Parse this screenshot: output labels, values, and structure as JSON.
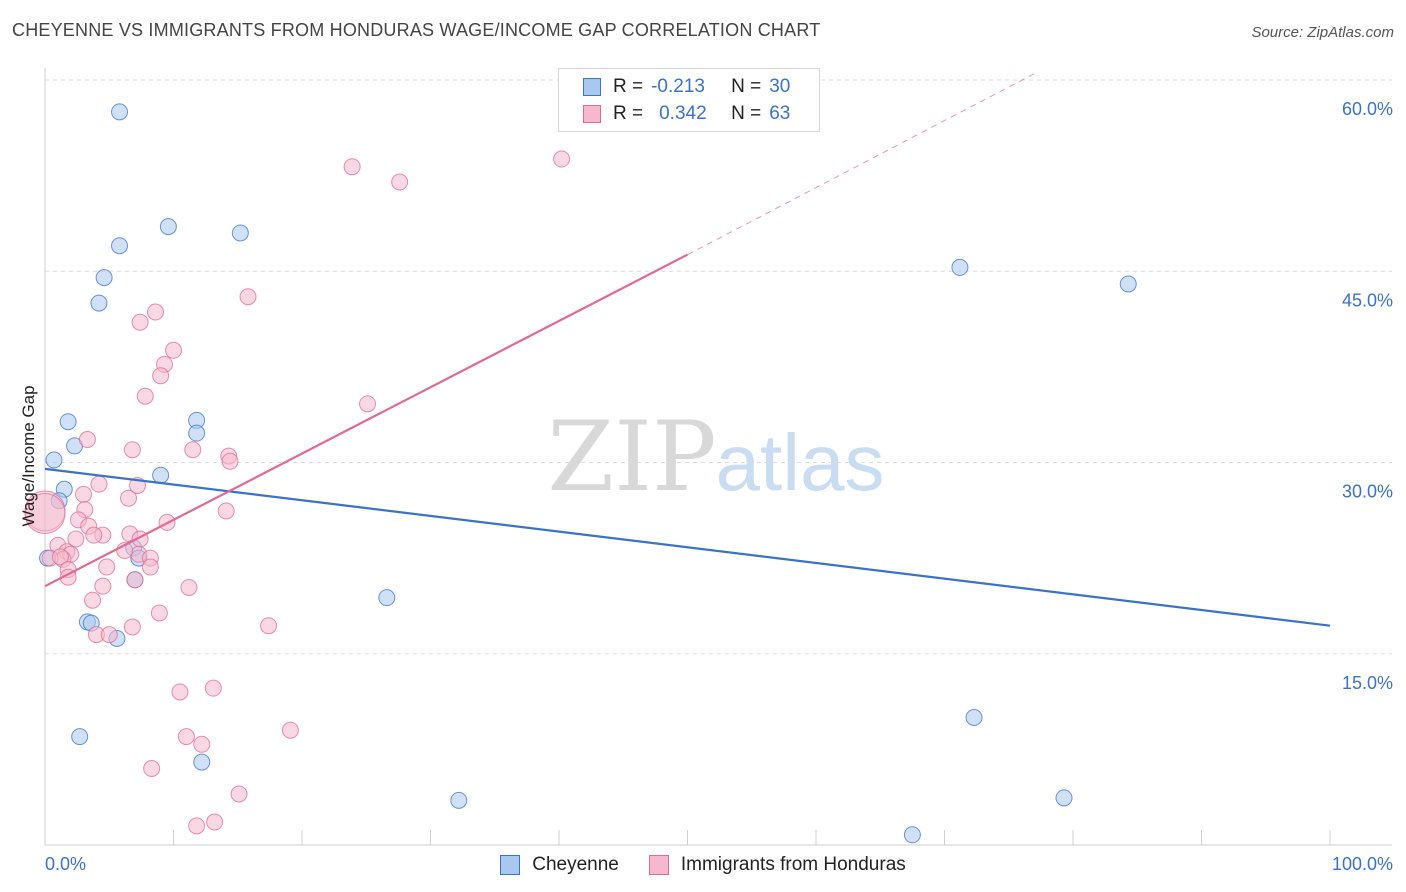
{
  "title": "CHEYENNE VS IMMIGRANTS FROM HONDURAS WAGE/INCOME GAP CORRELATION CHART",
  "source": "Source: ZipAtlas.com",
  "watermark": {
    "zip": "ZIP",
    "atlas": "atlas"
  },
  "legend": {
    "rows": [
      {
        "r_label": "R =",
        "r_value": "-0.213",
        "n_label": "N =",
        "n_value": "30"
      },
      {
        "r_label": "R =",
        "r_value": "0.342",
        "n_label": "N =",
        "n_value": "63"
      }
    ]
  },
  "chart_data": {
    "type": "scatter",
    "title": "CHEYENNE VS IMMIGRANTS FROM HONDURAS WAGE/INCOME GAP CORRELATION CHART",
    "xlabel": "",
    "ylabel": "Wage/Income Gap",
    "xlim": [
      0,
      100
    ],
    "ylim": [
      0,
      60
    ],
    "x_tick_labels": [
      "0.0%",
      "100.0%"
    ],
    "y_ticks": [
      15,
      30,
      45,
      60
    ],
    "y_tick_labels": [
      "15.0%",
      "30.0%",
      "45.0%",
      "60.0%"
    ],
    "legend_position": "bottom",
    "series": [
      {
        "name": "Cheyenne",
        "color": "#3b73c8",
        "fill": "#a9c8f0",
        "r": -0.213,
        "n": 30,
        "points": [
          [
            5.8,
            57.5
          ],
          [
            9.6,
            48.5
          ],
          [
            5.8,
            47.0
          ],
          [
            15.2,
            48.0
          ],
          [
            4.6,
            44.5
          ],
          [
            4.2,
            42.5
          ],
          [
            1.8,
            33.2
          ],
          [
            11.8,
            33.3
          ],
          [
            11.8,
            32.3
          ],
          [
            2.3,
            31.3
          ],
          [
            0.7,
            30.2
          ],
          [
            9.0,
            29.0
          ],
          [
            1.5,
            27.9
          ],
          [
            1.1,
            27.0
          ],
          [
            6.9,
            23.3
          ],
          [
            7.3,
            22.5
          ],
          [
            0.2,
            22.5
          ],
          [
            7.0,
            20.8
          ],
          [
            3.3,
            17.5
          ],
          [
            3.6,
            17.4
          ],
          [
            5.6,
            16.2
          ],
          [
            26.6,
            19.4
          ],
          [
            2.7,
            8.5
          ],
          [
            12.2,
            6.5
          ],
          [
            32.2,
            3.5
          ],
          [
            71.2,
            45.3
          ],
          [
            84.3,
            44.0
          ],
          [
            72.3,
            10.0
          ],
          [
            79.3,
            3.7
          ],
          [
            67.5,
            0.8
          ]
        ],
        "trend": {
          "x0": 0.0,
          "y0": 29.5,
          "x1": 100.0,
          "y1": 17.2,
          "dashed_to": null
        }
      },
      {
        "name": "Immigrants from Honduras",
        "color": "#e26a93",
        "fill": "#f5b8cc",
        "r": 0.342,
        "n": 63,
        "points": [
          [
            23.9,
            53.2
          ],
          [
            27.6,
            52.0
          ],
          [
            40.2,
            53.8
          ],
          [
            15.8,
            43.0
          ],
          [
            8.6,
            41.8
          ],
          [
            7.4,
            41.0
          ],
          [
            10.0,
            38.8
          ],
          [
            9.3,
            37.7
          ],
          [
            9.0,
            36.8
          ],
          [
            7.8,
            35.2
          ],
          [
            25.1,
            34.6
          ],
          [
            3.3,
            31.8
          ],
          [
            6.8,
            31.0
          ],
          [
            11.5,
            31.0
          ],
          [
            14.3,
            30.5
          ],
          [
            14.4,
            30.1
          ],
          [
            0.0,
            26.2
          ],
          [
            4.2,
            28.3
          ],
          [
            6.5,
            27.2
          ],
          [
            7.2,
            28.2
          ],
          [
            3.0,
            27.5
          ],
          [
            3.1,
            26.3
          ],
          [
            14.1,
            26.2
          ],
          [
            2.6,
            25.5
          ],
          [
            9.5,
            25.3
          ],
          [
            3.4,
            25.0
          ],
          [
            4.5,
            24.3
          ],
          [
            2.4,
            24.0
          ],
          [
            6.6,
            24.4
          ],
          [
            7.4,
            24.0
          ],
          [
            1.0,
            23.5
          ],
          [
            3.8,
            24.3
          ],
          [
            1.7,
            23.0
          ],
          [
            2.0,
            22.8
          ],
          [
            7.3,
            22.8
          ],
          [
            6.2,
            23.1
          ],
          [
            1.4,
            22.4
          ],
          [
            0.4,
            22.5
          ],
          [
            1.2,
            22.6
          ],
          [
            8.2,
            22.5
          ],
          [
            1.8,
            21.6
          ],
          [
            4.8,
            21.8
          ],
          [
            8.2,
            21.8
          ],
          [
            1.8,
            21.0
          ],
          [
            7.0,
            20.8
          ],
          [
            4.5,
            20.3
          ],
          [
            11.2,
            20.2
          ],
          [
            3.7,
            19.2
          ],
          [
            8.9,
            18.2
          ],
          [
            17.4,
            17.2
          ],
          [
            6.8,
            17.1
          ],
          [
            4.0,
            16.5
          ],
          [
            5.0,
            16.5
          ],
          [
            10.5,
            12.0
          ],
          [
            13.1,
            12.3
          ],
          [
            19.1,
            9.0
          ],
          [
            11.0,
            8.5
          ],
          [
            12.2,
            7.9
          ],
          [
            8.3,
            6.0
          ],
          [
            15.1,
            4.0
          ],
          [
            13.2,
            1.8
          ],
          [
            11.8,
            1.5
          ],
          [
            0.0,
            26.0
          ]
        ],
        "trend": {
          "x0": 0.0,
          "y0": 20.3,
          "x1": 50.0,
          "y1": 46.3,
          "dashed_to": {
            "x": 77.0,
            "y": 60.5
          }
        }
      }
    ]
  }
}
